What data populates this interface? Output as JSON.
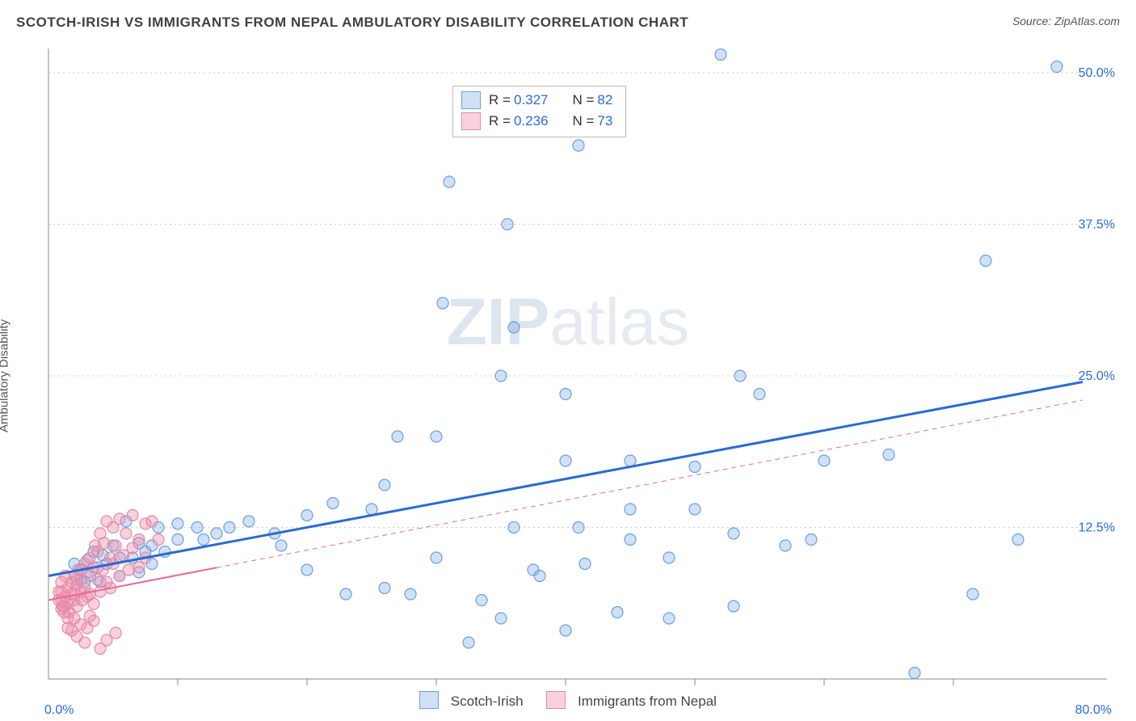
{
  "header": {
    "title": "SCOTCH-IRISH VS IMMIGRANTS FROM NEPAL AMBULATORY DISABILITY CORRELATION CHART",
    "source": "Source: ZipAtlas.com"
  },
  "ylabel": "Ambulatory Disability",
  "watermark_a": "ZIP",
  "watermark_b": "atlas",
  "stats": {
    "series1": {
      "r_label": "R =",
      "r": "0.327",
      "n_label": "N =",
      "n": "82"
    },
    "series2": {
      "r_label": "R =",
      "r": "0.236",
      "n_label": "N =",
      "n": "73"
    }
  },
  "bottom_legend": {
    "series1": "Scotch-Irish",
    "series2": "Immigrants from Nepal"
  },
  "xaxis": {
    "min_label": "0.0%",
    "max_label": "80.0%"
  },
  "chart": {
    "type": "scatter+regression",
    "plot_bg": "#ffffff",
    "grid_color": "#cccccc",
    "grid_dash": "2 4",
    "axis_color": "#888888",
    "x_domain": [
      0,
      80
    ],
    "y_domain": [
      0,
      52
    ],
    "y_ticks": [
      12.5,
      25.0,
      37.5,
      50.0
    ],
    "y_tick_labels": [
      "12.5%",
      "25.0%",
      "37.5%",
      "50.0%"
    ],
    "y_tick_color": "#2a6bd4",
    "x_gridlines": [
      10,
      20,
      30,
      40,
      50,
      60,
      70
    ],
    "marker_radius": 7,
    "marker_stroke_width": 1.2,
    "series": [
      {
        "name": "scotch-irish",
        "fill": "rgba(120,170,230,0.35)",
        "stroke": "#6f9fd8",
        "line_color": "#2a6bd4",
        "line_width": 3,
        "line_dash": "",
        "reg_y0": 8.5,
        "reg_y80": 24.5,
        "points": [
          [
            52,
            51.5
          ],
          [
            41,
            44
          ],
          [
            31,
            41
          ],
          [
            35.5,
            37.5
          ],
          [
            72.5,
            34.5
          ],
          [
            30.5,
            31
          ],
          [
            36,
            29
          ],
          [
            35,
            25
          ],
          [
            40,
            23.5
          ],
          [
            55,
            23.5
          ],
          [
            53.5,
            25
          ],
          [
            60,
            18
          ],
          [
            50,
            17.5
          ],
          [
            45,
            18
          ],
          [
            40,
            18
          ],
          [
            30,
            20
          ],
          [
            27,
            20
          ],
          [
            26,
            16
          ],
          [
            25,
            14
          ],
          [
            22,
            14.5
          ],
          [
            20,
            13.5
          ],
          [
            65,
            18.5
          ],
          [
            57,
            11
          ],
          [
            59,
            11.5
          ],
          [
            53,
            12
          ],
          [
            48,
            10
          ],
          [
            45,
            11.5
          ],
          [
            41,
            12.5
          ],
          [
            37.5,
            9
          ],
          [
            36,
            12.5
          ],
          [
            33.5,
            6.5
          ],
          [
            32.5,
            3
          ],
          [
            30,
            10
          ],
          [
            28,
            7
          ],
          [
            26,
            7.5
          ],
          [
            23,
            7
          ],
          [
            20,
            9
          ],
          [
            18,
            11
          ],
          [
            17.5,
            12
          ],
          [
            15.5,
            13
          ],
          [
            14,
            12.5
          ],
          [
            13,
            12
          ],
          [
            12,
            11.5
          ],
          [
            11.5,
            12.5
          ],
          [
            10,
            11.5
          ],
          [
            10,
            12.8
          ],
          [
            9,
            10.5
          ],
          [
            8.5,
            12.5
          ],
          [
            8,
            11
          ],
          [
            8,
            9.5
          ],
          [
            7.5,
            10.5
          ],
          [
            7,
            11.2
          ],
          [
            7,
            8.8
          ],
          [
            6.5,
            10
          ],
          [
            6,
            13
          ],
          [
            5.5,
            10
          ],
          [
            5.5,
            8.5
          ],
          [
            5,
            11
          ],
          [
            4.5,
            9.5
          ],
          [
            4.2,
            10.2
          ],
          [
            4,
            8
          ],
          [
            3.8,
            9.2
          ],
          [
            3.5,
            10.5
          ],
          [
            3.2,
            8.5
          ],
          [
            3,
            9.8
          ],
          [
            2.8,
            8
          ],
          [
            2.5,
            9
          ],
          [
            2.2,
            8.2
          ],
          [
            2,
            9.5
          ],
          [
            67,
            0.5
          ],
          [
            71.5,
            7
          ],
          [
            53,
            6
          ],
          [
            48,
            5
          ],
          [
            44,
            5.5
          ],
          [
            40,
            4
          ],
          [
            35,
            5
          ],
          [
            45,
            14
          ],
          [
            50,
            14
          ],
          [
            38,
            8.5
          ],
          [
            41.5,
            9.5
          ],
          [
            78,
            50.5
          ],
          [
            75,
            11.5
          ]
        ]
      },
      {
        "name": "nepal",
        "fill": "rgba(240,140,170,0.4)",
        "stroke": "#e38aa8",
        "line_color": "#e86a98",
        "line_width": 2,
        "line_dash": "6 5",
        "reg_y0": 6.5,
        "reg_y80": 23.0,
        "solid_until_x": 13,
        "points": [
          [
            1,
            6.5
          ],
          [
            1,
            7.2
          ],
          [
            1.2,
            6.0
          ],
          [
            1.3,
            6.8
          ],
          [
            1.5,
            7.5
          ],
          [
            1.5,
            6.2
          ],
          [
            1.6,
            5.5
          ],
          [
            1.8,
            7.0
          ],
          [
            1.8,
            8.0
          ],
          [
            2.0,
            6.5
          ],
          [
            2.0,
            8.5
          ],
          [
            2.2,
            7.8
          ],
          [
            2.2,
            6.0
          ],
          [
            2.3,
            9.0
          ],
          [
            2.5,
            7.2
          ],
          [
            2.5,
            8.2
          ],
          [
            2.6,
            6.5
          ],
          [
            2.8,
            9.5
          ],
          [
            2.8,
            7.5
          ],
          [
            3.0,
            6.8
          ],
          [
            3.0,
            8.8
          ],
          [
            3.2,
            10.0
          ],
          [
            3.2,
            7.0
          ],
          [
            3.5,
            9.2
          ],
          [
            3.5,
            6.2
          ],
          [
            3.6,
            11.0
          ],
          [
            3.8,
            8.2
          ],
          [
            3.8,
            10.5
          ],
          [
            4.0,
            7.2
          ],
          [
            4.0,
            12.0
          ],
          [
            4.2,
            9.0
          ],
          [
            4.3,
            11.2
          ],
          [
            4.5,
            8.0
          ],
          [
            4.5,
            13.0
          ],
          [
            4.8,
            10.0
          ],
          [
            4.8,
            7.5
          ],
          [
            5.0,
            12.5
          ],
          [
            5.0,
            9.5
          ],
          [
            5.2,
            11.0
          ],
          [
            5.5,
            8.5
          ],
          [
            5.5,
            13.2
          ],
          [
            5.8,
            10.2
          ],
          [
            6.0,
            12.0
          ],
          [
            6.2,
            9.0
          ],
          [
            6.5,
            13.5
          ],
          [
            6.5,
            10.8
          ],
          [
            7.0,
            11.5
          ],
          [
            7.0,
            9.2
          ],
          [
            7.5,
            12.8
          ],
          [
            7.5,
            10.0
          ],
          [
            8.0,
            13.0
          ],
          [
            8.5,
            11.5
          ],
          [
            1.5,
            5.0
          ],
          [
            2.0,
            5.0
          ],
          [
            2.5,
            4.5
          ],
          [
            3.0,
            4.2
          ],
          [
            3.5,
            4.8
          ],
          [
            1.8,
            4.0
          ],
          [
            2.2,
            3.5
          ],
          [
            2.8,
            3.0
          ],
          [
            4.0,
            2.5
          ],
          [
            3.2,
            5.2
          ],
          [
            4.5,
            3.2
          ],
          [
            1.2,
            5.5
          ],
          [
            1.5,
            4.2
          ],
          [
            5.2,
            3.8
          ],
          [
            2.0,
            7.0
          ],
          [
            1.0,
            5.8
          ],
          [
            1.3,
            8.5
          ],
          [
            0.8,
            7.2
          ],
          [
            0.8,
            6.5
          ],
          [
            1.0,
            8.0
          ],
          [
            1.1,
            6.0
          ]
        ]
      }
    ]
  }
}
